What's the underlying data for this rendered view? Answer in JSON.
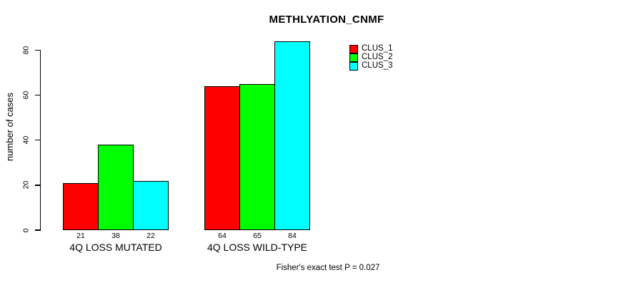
{
  "chart_data": {
    "type": "bar",
    "title": "METHLYATION_CNMF",
    "ylabel": "number of cases",
    "xlabel": "",
    "categories": [
      "4Q LOSS MUTATED",
      "4Q LOSS WILD-TYPE"
    ],
    "series": [
      {
        "name": "CLUS_1",
        "color": "#ff0000",
        "values": [
          21,
          64
        ]
      },
      {
        "name": "CLUS_2",
        "color": "#00ff00",
        "values": [
          38,
          65
        ]
      },
      {
        "name": "CLUS_3",
        "color": "#00ffff",
        "values": [
          22,
          84
        ]
      }
    ],
    "bar_value_labels": [
      [
        "21",
        "38",
        "22"
      ],
      [
        "64",
        "65",
        "84"
      ]
    ],
    "yticks": [
      0,
      20,
      40,
      60,
      80
    ],
    "ylim": [
      0,
      84
    ],
    "grid": false,
    "legend_position": "right",
    "annotation": "Fisher's exact test P = 0.027"
  }
}
